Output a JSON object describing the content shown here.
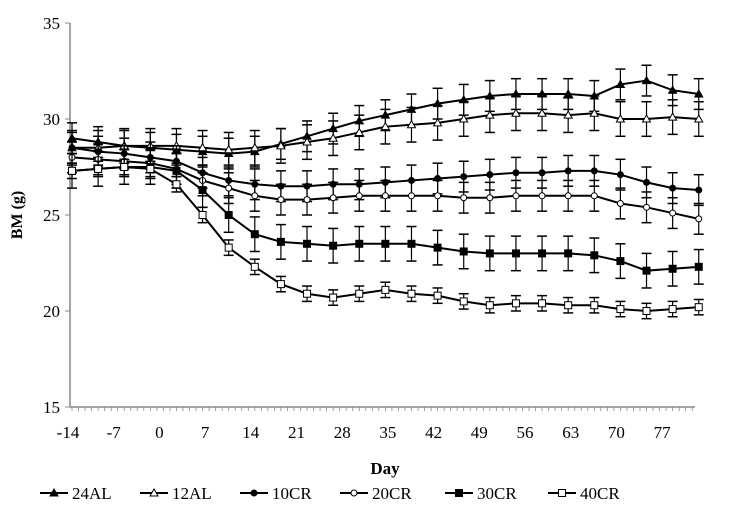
{
  "chart_data": {
    "type": "line",
    "xlabel": "Day",
    "ylabel": "BM (g)",
    "ylim": [
      15,
      35
    ],
    "yticks": [
      15,
      20,
      25,
      30,
      35
    ],
    "xlim": [
      -14,
      81.5
    ],
    "xticks": [
      -14,
      -7,
      0,
      7,
      14,
      21,
      28,
      35,
      42,
      49,
      56,
      63,
      70,
      77
    ],
    "grid": false,
    "error_bars": true,
    "legend_position": "bottom",
    "x": [
      -14,
      -10,
      -6,
      -2,
      2,
      6,
      10,
      14,
      18,
      22,
      26,
      30,
      34,
      38,
      42,
      46,
      50,
      54,
      58,
      62,
      66,
      70,
      74,
      78,
      82
    ],
    "series": [
      {
        "name": "24AL",
        "marker": "filled-triangle",
        "error": 0.8,
        "values": [
          29.0,
          28.8,
          28.6,
          28.5,
          28.4,
          28.3,
          28.2,
          28.3,
          28.7,
          29.1,
          29.5,
          29.9,
          30.2,
          30.5,
          30.8,
          31.0,
          31.2,
          31.3,
          31.3,
          31.3,
          31.2,
          31.8,
          32.0,
          31.5,
          31.3
        ]
      },
      {
        "name": "12AL",
        "marker": "open-triangle",
        "error": 0.9,
        "values": [
          28.5,
          28.5,
          28.6,
          28.6,
          28.6,
          28.5,
          28.4,
          28.5,
          28.6,
          28.8,
          29.0,
          29.3,
          29.6,
          29.7,
          29.8,
          30.0,
          30.2,
          30.3,
          30.3,
          30.2,
          30.3,
          30.0,
          30.0,
          30.1,
          30.0
        ]
      },
      {
        "name": "10CR",
        "marker": "filled-circle",
        "error": 0.8,
        "values": [
          28.5,
          28.3,
          28.2,
          28.0,
          27.8,
          27.2,
          26.8,
          26.6,
          26.5,
          26.5,
          26.6,
          26.6,
          26.7,
          26.8,
          26.9,
          27.0,
          27.1,
          27.2,
          27.2,
          27.3,
          27.3,
          27.1,
          26.7,
          26.4,
          26.3
        ]
      },
      {
        "name": "20CR",
        "marker": "open-circle",
        "error": 0.8,
        "values": [
          28.0,
          27.9,
          27.8,
          27.7,
          27.4,
          26.8,
          26.4,
          26.0,
          25.8,
          25.8,
          25.9,
          26.0,
          26.0,
          26.0,
          26.0,
          25.9,
          25.9,
          26.0,
          26.0,
          26.0,
          26.0,
          25.6,
          25.4,
          25.1,
          24.8
        ]
      },
      {
        "name": "30CR",
        "marker": "filled-square",
        "error": 0.9,
        "values": [
          27.3,
          27.4,
          27.5,
          27.5,
          27.3,
          26.3,
          25.0,
          24.0,
          23.6,
          23.5,
          23.4,
          23.5,
          23.5,
          23.5,
          23.3,
          23.1,
          23.0,
          23.0,
          23.0,
          23.0,
          22.9,
          22.6,
          22.1,
          22.2,
          22.3
        ]
      },
      {
        "name": "40CR",
        "marker": "open-square",
        "error": 0.4,
        "values": [
          27.3,
          27.4,
          27.5,
          27.4,
          26.6,
          25.0,
          23.3,
          22.3,
          21.4,
          20.9,
          20.7,
          20.9,
          21.1,
          20.9,
          20.8,
          20.5,
          20.3,
          20.4,
          20.4,
          20.3,
          20.3,
          20.1,
          20.0,
          20.1,
          20.2
        ]
      }
    ]
  }
}
